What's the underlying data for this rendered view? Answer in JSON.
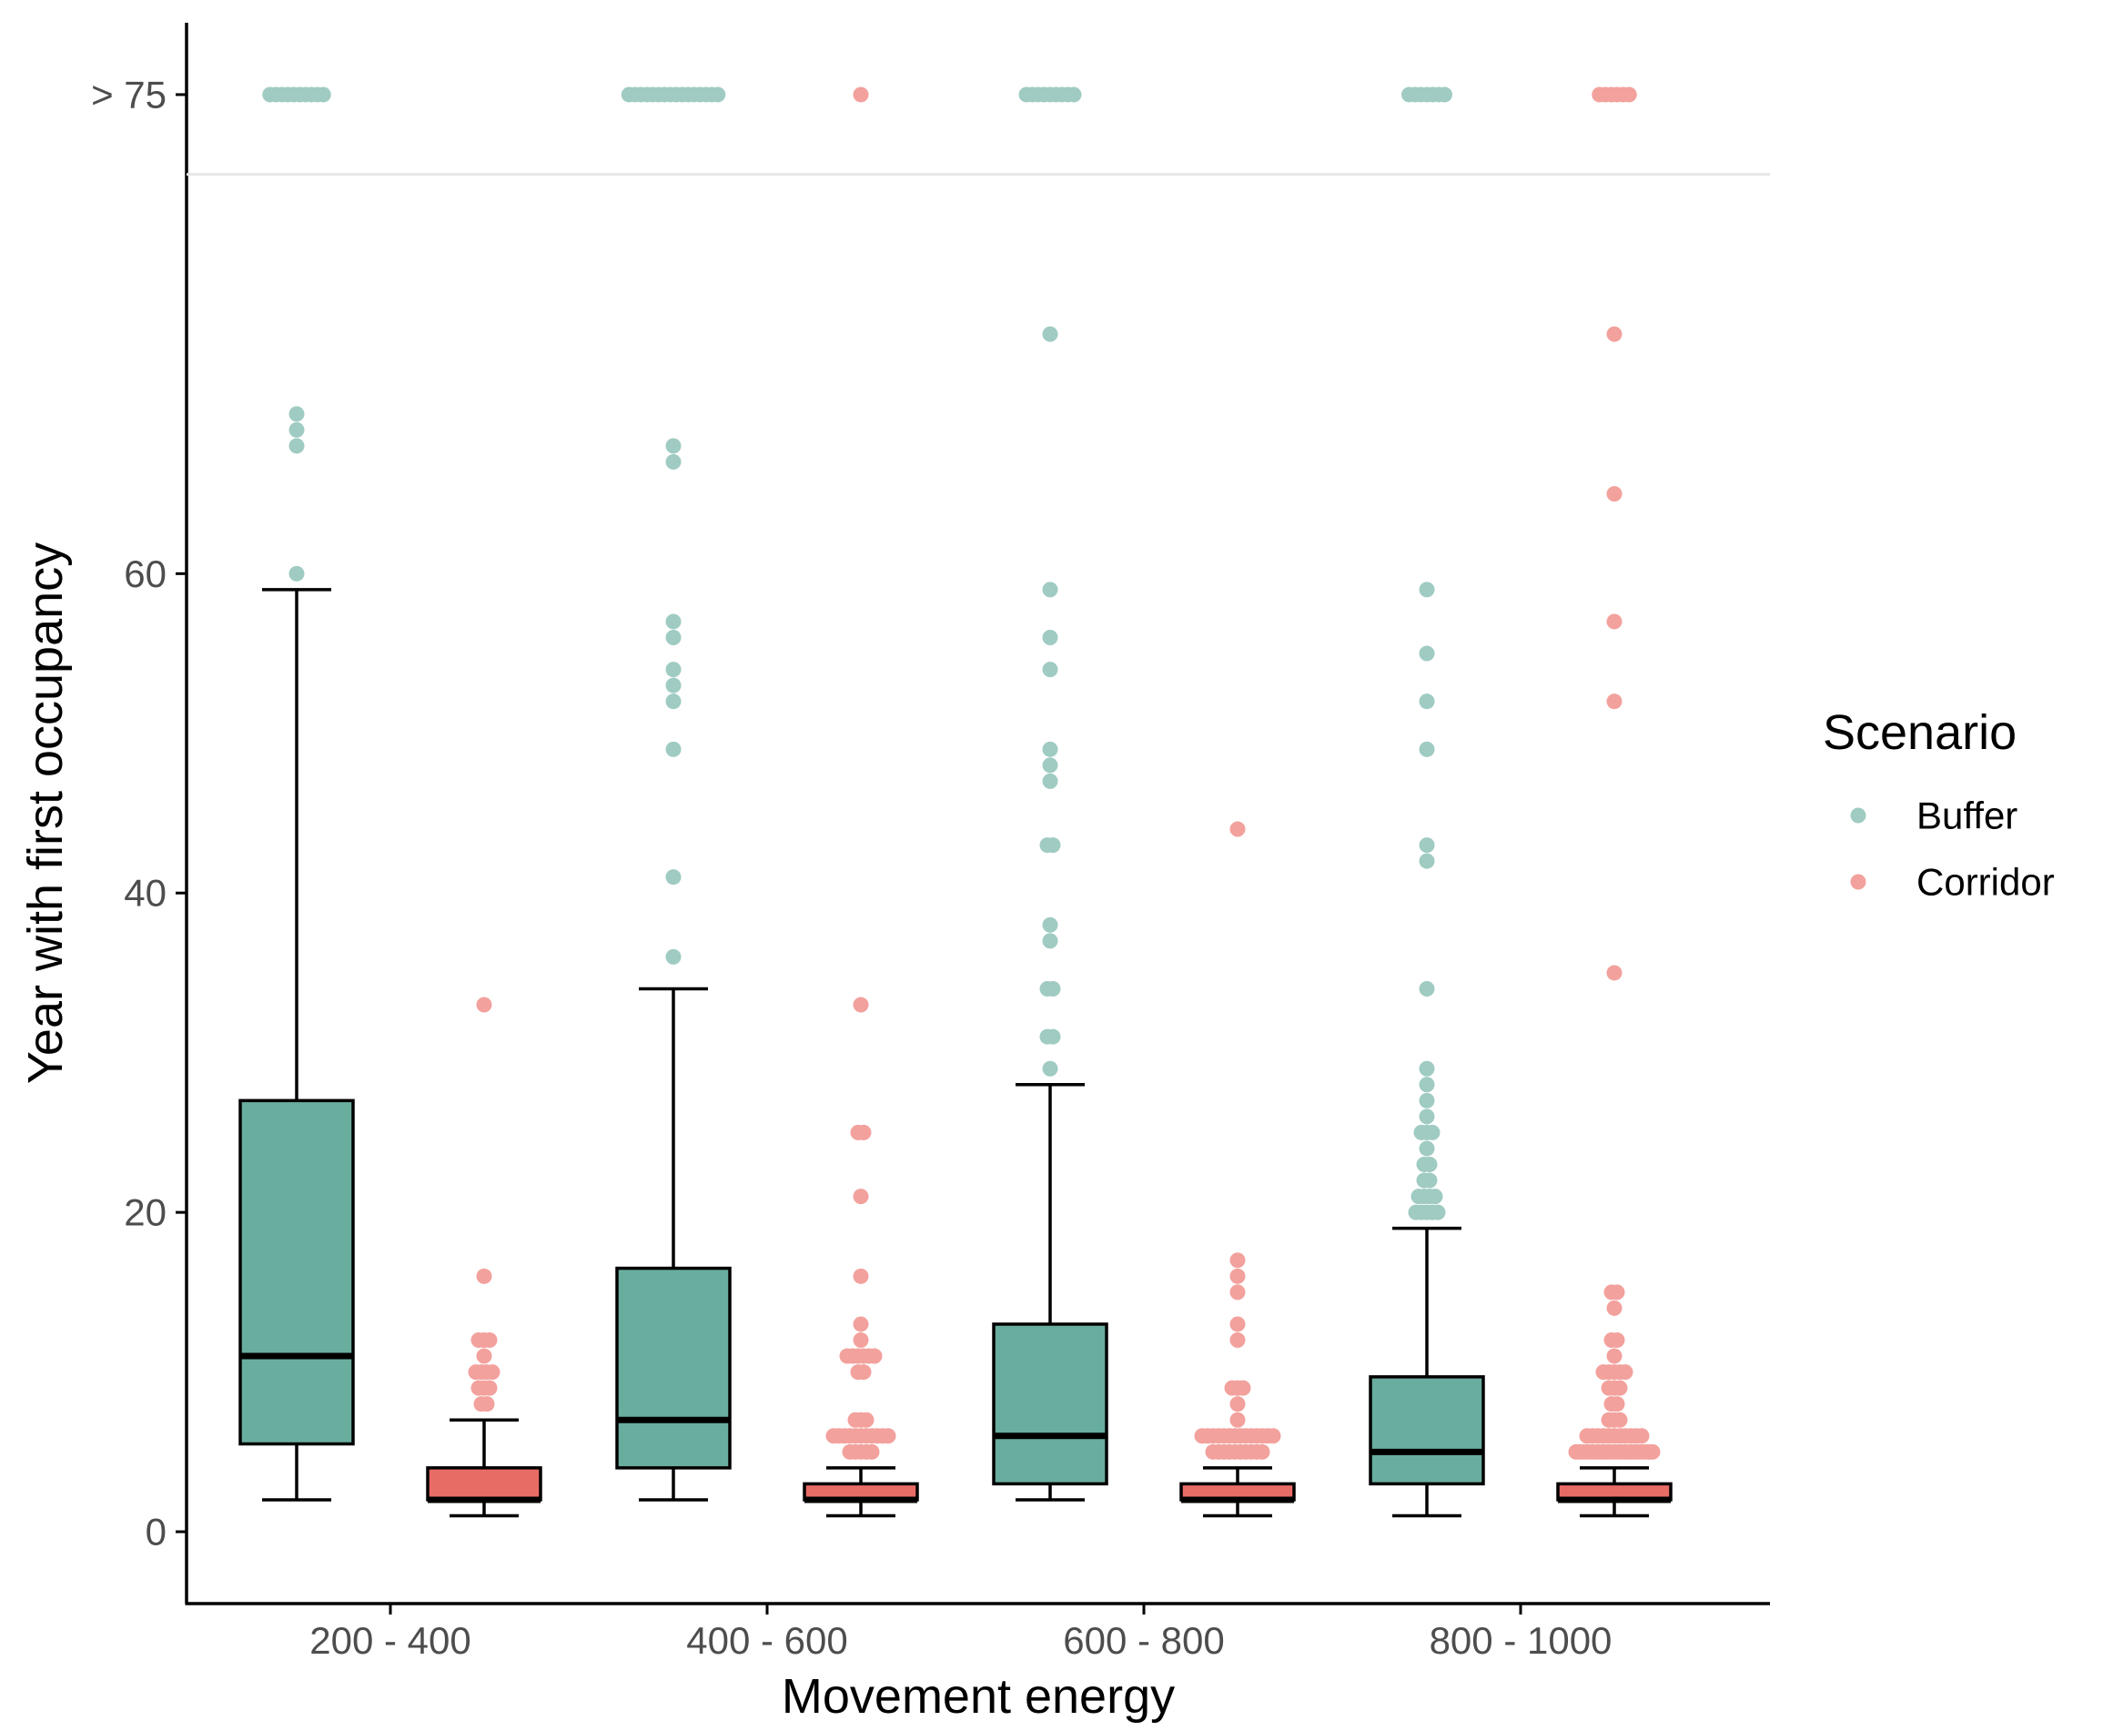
{
  "chart_data": {
    "type": "boxplot",
    "xlabel": "Movement energy",
    "ylabel": "Year with first occupancy",
    "categories": [
      "200 - 400",
      "400 - 600",
      "600 - 800",
      "800 - 1000"
    ],
    "ylim": [
      -4.5,
      94.5
    ],
    "yticks": [
      0,
      20,
      40,
      60
    ],
    "overflow_label": "> 75",
    "overflow_value": 90,
    "overflow_separator": 85,
    "legend": {
      "title": "Scenario",
      "position": "right"
    },
    "colors": {
      "Buffer_box": "#69ad9f",
      "Buffer_point": "#9fcbc2",
      "Corridor_box": "#e86c66",
      "Corridor_point": "#f2a19d",
      "axis": "#000000",
      "separator": "#e6e6e6"
    },
    "series": [
      {
        "name": "Buffer",
        "boxes": [
          {
            "min": 2,
            "q1": 5.5,
            "median": 11,
            "q3": 27,
            "max": 59,
            "outliers": [
              60,
              68,
              69,
              70
            ],
            "overflow_count": 10
          },
          {
            "min": 2,
            "q1": 4,
            "median": 7,
            "q3": 16.5,
            "max": 34,
            "outliers": [
              36,
              41,
              49,
              52,
              53,
              54,
              56,
              57,
              67,
              68
            ],
            "overflow_count": 16
          },
          {
            "min": 2,
            "q1": 3,
            "median": 6,
            "q3": 13,
            "max": 28,
            "outliers": [
              29,
              31,
              31,
              34,
              34,
              37,
              38,
              43,
              43,
              47,
              48,
              49,
              54,
              56,
              59,
              75
            ],
            "overflow_count": 9
          },
          {
            "min": 1,
            "q1": 3,
            "median": 5,
            "q3": 9.7,
            "max": 19,
            "outliers": [
              20,
              20,
              20,
              20,
              20,
              21,
              21,
              21,
              21,
              22,
              22,
              23,
              23,
              24,
              25,
              25,
              25,
              26,
              27,
              28,
              29,
              34,
              42,
              43,
              49,
              52,
              55,
              59
            ],
            "overflow_count": 7
          }
        ]
      },
      {
        "name": "Corridor",
        "boxes": [
          {
            "min": 1,
            "q1": 2,
            "median": 2,
            "q3": 4,
            "max": 7,
            "outliers": [
              8,
              8,
              9,
              9,
              9,
              10,
              10,
              10,
              10,
              11,
              12,
              12,
              12,
              16,
              33
            ],
            "overflow_count": 0
          },
          {
            "min": 1,
            "q1": 2,
            "median": 2,
            "q3": 3,
            "max": 4,
            "outliers": [
              5,
              5,
              5,
              5,
              5,
              6,
              6,
              6,
              6,
              6,
              6,
              6,
              6,
              6,
              6,
              6,
              7,
              7,
              7,
              10,
              10,
              11,
              11,
              11,
              11,
              11,
              11,
              12,
              13,
              16,
              21,
              25,
              25,
              33
            ],
            "overflow_count": 1
          },
          {
            "min": 1,
            "q1": 2,
            "median": 2,
            "q3": 3,
            "max": 4,
            "outliers": [
              5,
              5,
              5,
              5,
              5,
              5,
              5,
              5,
              5,
              5,
              6,
              6,
              6,
              6,
              6,
              6,
              6,
              6,
              6,
              6,
              6,
              6,
              6,
              6,
              7,
              8,
              9,
              9,
              9,
              12,
              13,
              15,
              16,
              17,
              44
            ],
            "overflow_count": 0
          },
          {
            "min": 1,
            "q1": 2,
            "median": 2,
            "q3": 3,
            "max": 4,
            "outliers": [
              5,
              5,
              5,
              5,
              5,
              5,
              5,
              5,
              5,
              5,
              5,
              5,
              5,
              5,
              5,
              5,
              5,
              5,
              5,
              5,
              5,
              5,
              5,
              6,
              6,
              6,
              6,
              6,
              6,
              6,
              6,
              6,
              6,
              6,
              7,
              7,
              7,
              8,
              8,
              9,
              9,
              9,
              10,
              10,
              10,
              10,
              10,
              11,
              12,
              12,
              14,
              15,
              15,
              35,
              52,
              57,
              65,
              75
            ],
            "overflow_count": 6
          }
        ]
      }
    ]
  }
}
